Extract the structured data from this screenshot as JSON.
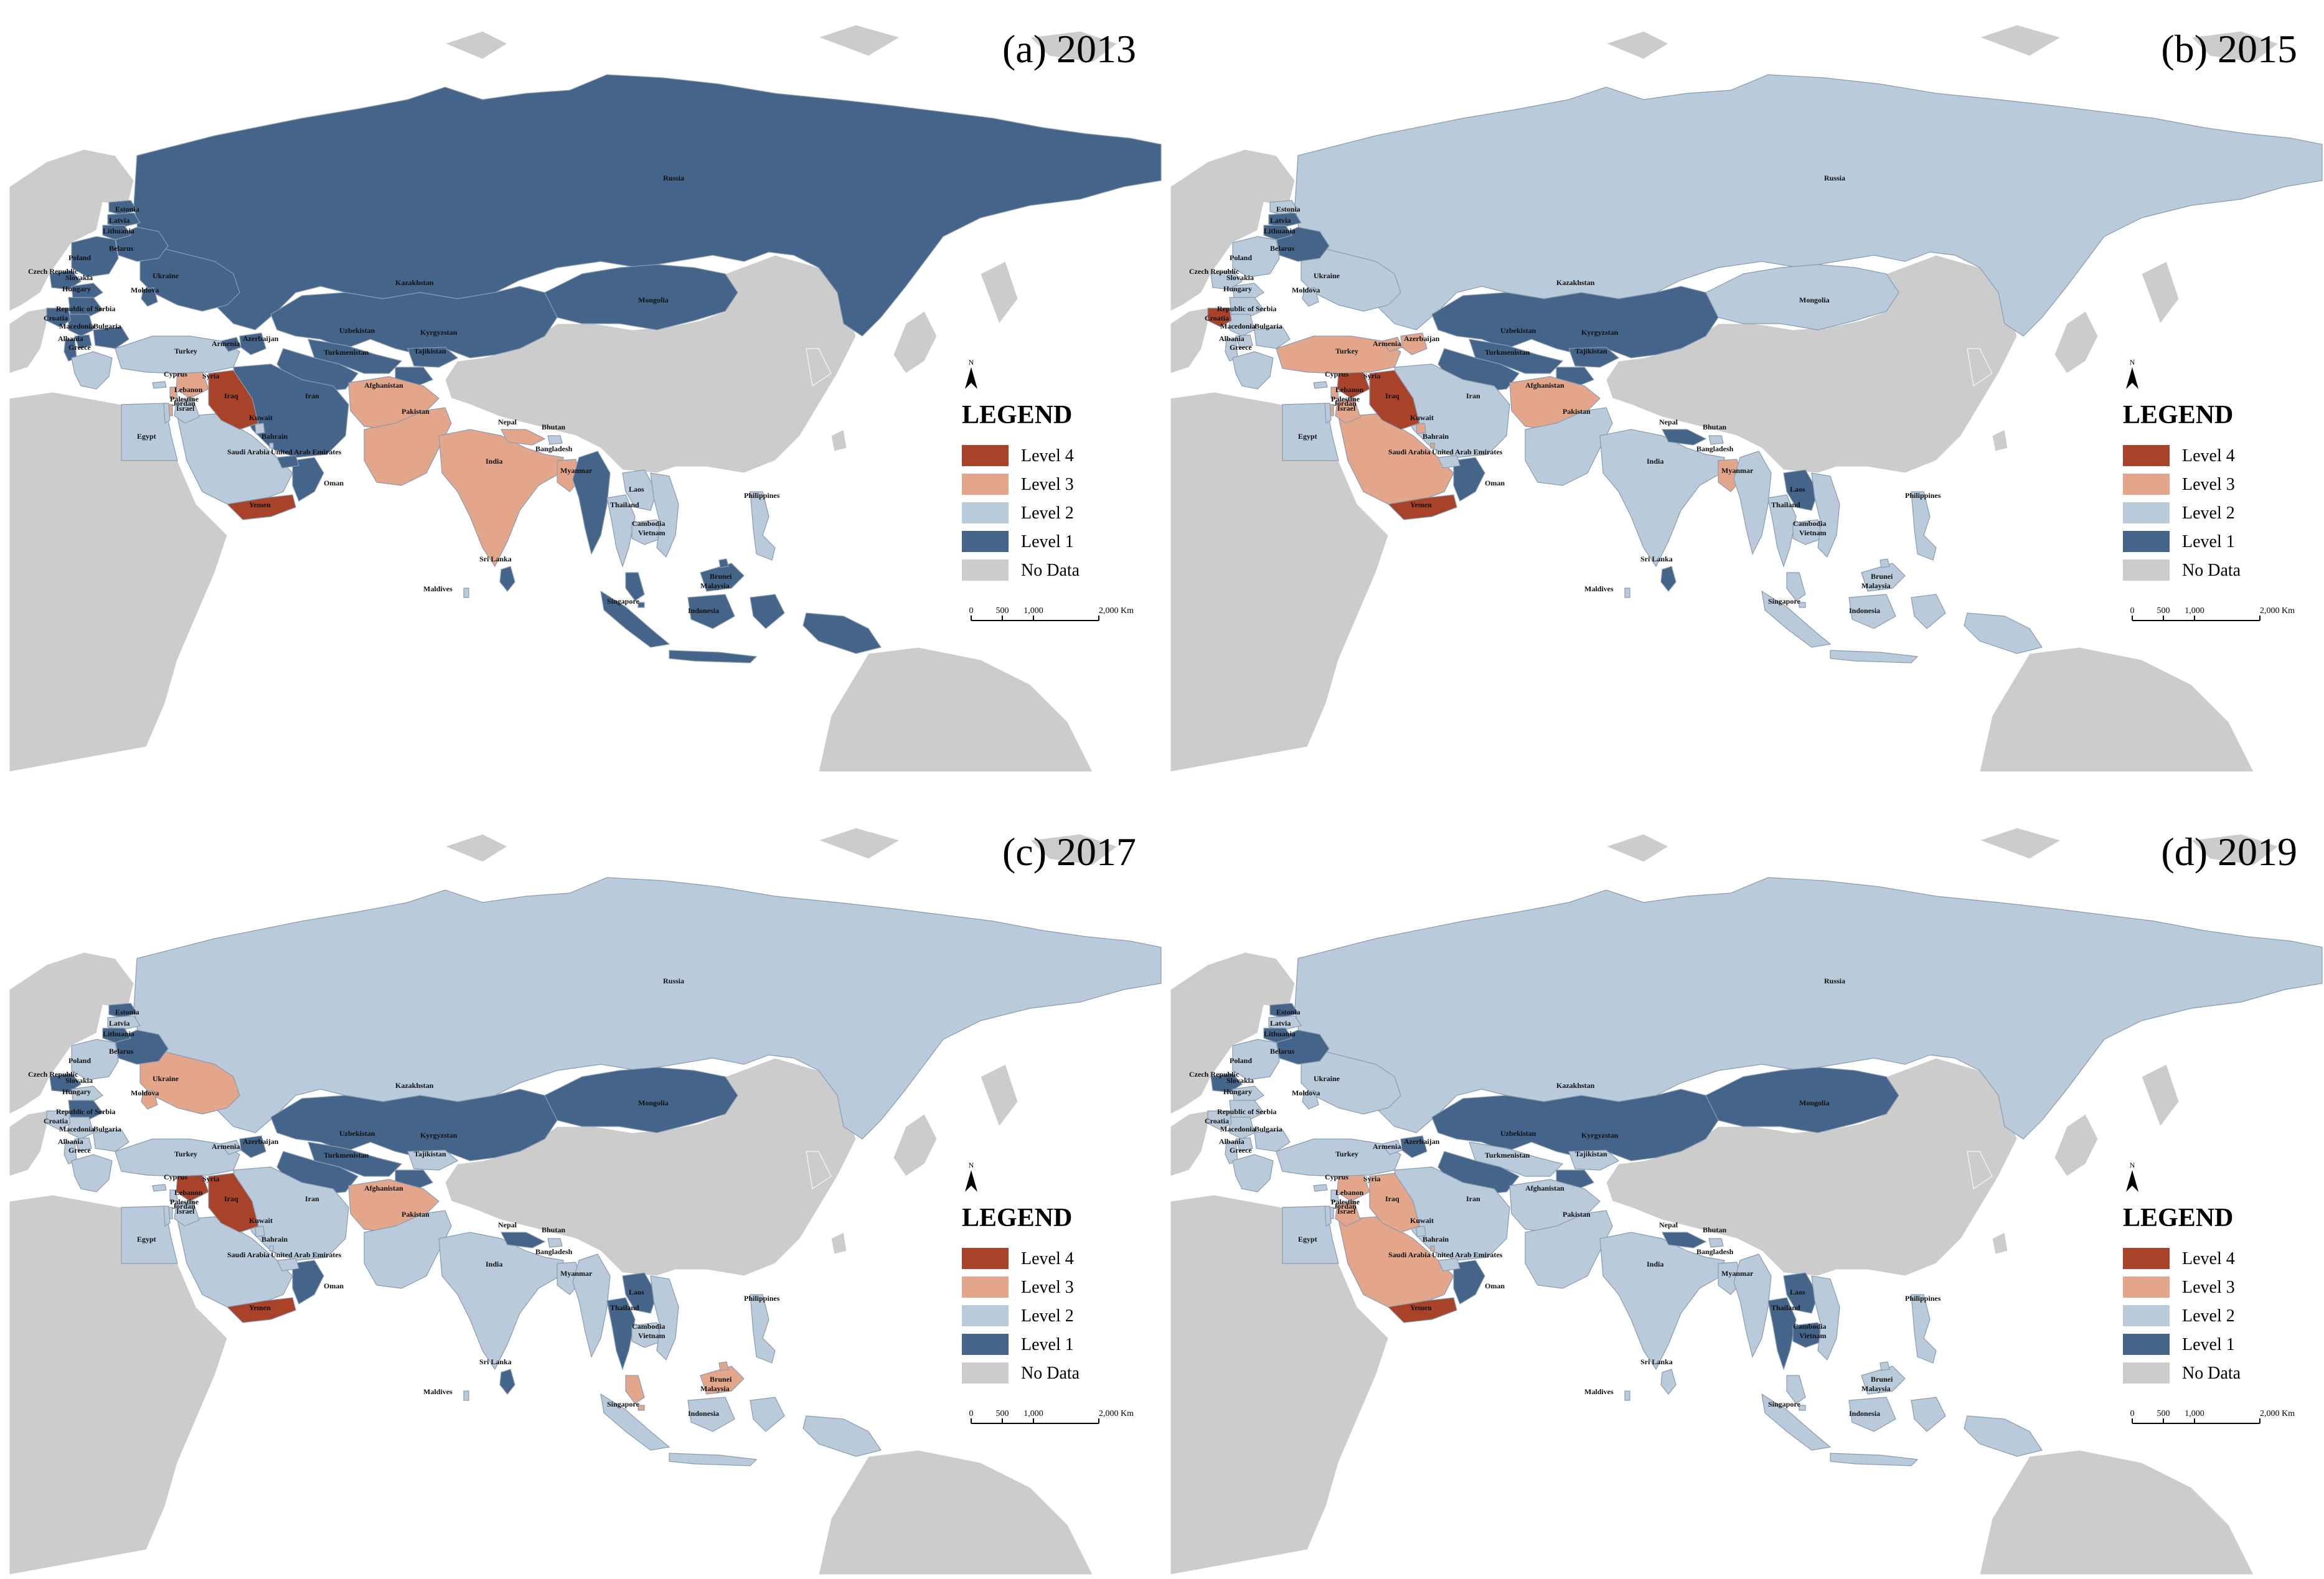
{
  "colors": {
    "level4": "#a8432a",
    "level3": "#e3a68b",
    "level2": "#b9cadb",
    "level1": "#45648a",
    "nodata": "#cccccc",
    "ocean": "#ffffff",
    "border": "#8a9bb0"
  },
  "legend": {
    "title": "LEGEND",
    "items": [
      {
        "key": "level4",
        "label": "Level 4"
      },
      {
        "key": "level3",
        "label": "Level 3"
      },
      {
        "key": "level2",
        "label": "Level 2"
      },
      {
        "key": "level1",
        "label": "Level 1"
      },
      {
        "key": "nodata",
        "label": "No Data"
      }
    ]
  },
  "scale_bar": {
    "ticks": [
      "0",
      "500",
      "1,000",
      "2,000 Km"
    ]
  },
  "north_arrow": {
    "label": "N"
  },
  "panels": [
    {
      "id": "a",
      "title": "(a) 2013",
      "levels": {
        "Russia": "level1",
        "Kazakhstan": "level1",
        "Mongolia": "level1",
        "Ukraine": "level1",
        "Belarus": "level1",
        "Poland": "level1",
        "Estonia": "level1",
        "Latvia": "level1",
        "Lithuania": "level1",
        "Czech Republic": "level1",
        "Slovakia": "level1",
        "Hungary": "level1",
        "Moldova": "level1",
        "Republic of Serbia": "level1",
        "Croatia": "level1",
        "Macedonia": "level1",
        "Bulgaria": "level1",
        "Albania": "level1",
        "Greece": "level2",
        "Turkey": "level2",
        "Armenia": "level1",
        "Azerbaijan": "level1",
        "Uzbekistan": "level1",
        "Turkmenistan": "level1",
        "Kyrgyzstan": "level1",
        "Tajikistan": "level1",
        "Iran": "level1",
        "Afghanistan": "level3",
        "Pakistan": "level3",
        "India": "level3",
        "Nepal": "level3",
        "Bhutan": "level2",
        "Bangladesh": "level3",
        "Myanmar": "level1",
        "Thailand": "level2",
        "Laos": "level2",
        "Cambodia": "level2",
        "Vietnam": "level2",
        "Sri Lanka": "level1",
        "Maldives": "level2",
        "Malaysia": "level1",
        "Singapore": "level1",
        "Indonesia": "level1",
        "Brunei": "level1",
        "Philippines": "level2",
        "Egypt": "level2",
        "Saudi Arabia": "level2",
        "Yemen": "level4",
        "Oman": "level1",
        "United Arab Emirates": "level1",
        "Iraq": "level4",
        "Syria": "level3",
        "Lebanon": "level3",
        "Palestine": "level3",
        "Israel": "level2",
        "Kuwait": "level2",
        "Bahrain": "level2",
        "Cyprus": "level2",
        "Jordan": "level2"
      }
    },
    {
      "id": "b",
      "title": "(b) 2015",
      "levels": {
        "Russia": "level2",
        "Kazakhstan": "level1",
        "Mongolia": "level2",
        "Ukraine": "level2",
        "Belarus": "level1",
        "Poland": "level2",
        "Estonia": "level2",
        "Latvia": "level1",
        "Lithuania": "level1",
        "Czech Republic": "level2",
        "Slovakia": "level2",
        "Hungary": "level2",
        "Moldova": "level2",
        "Republic of Serbia": "level2",
        "Croatia": "level4",
        "Macedonia": "level2",
        "Bulgaria": "level2",
        "Albania": "level2",
        "Greece": "level2",
        "Turkey": "level3",
        "Armenia": "level3",
        "Azerbaijan": "level3",
        "Uzbekistan": "level1",
        "Turkmenistan": "level1",
        "Kyrgyzstan": "level1",
        "Tajikistan": "level1",
        "Iran": "level2",
        "Afghanistan": "level3",
        "Pakistan": "level2",
        "India": "level2",
        "Nepal": "level1",
        "Bhutan": "level2",
        "Bangladesh": "level3",
        "Myanmar": "level2",
        "Thailand": "level2",
        "Laos": "level1",
        "Cambodia": "level2",
        "Vietnam": "level2",
        "Sri Lanka": "level1",
        "Maldives": "level2",
        "Malaysia": "level2",
        "Singapore": "level2",
        "Indonesia": "level2",
        "Brunei": "level2",
        "Philippines": "level2",
        "Egypt": "level2",
        "Saudi Arabia": "level3",
        "Yemen": "level4",
        "Oman": "level1",
        "United Arab Emirates": "level2",
        "Iraq": "level4",
        "Syria": "level4",
        "Lebanon": "level3",
        "Palestine": "level3",
        "Israel": "level2",
        "Kuwait": "level3",
        "Bahrain": "level3",
        "Cyprus": "level2",
        "Jordan": "level3"
      }
    },
    {
      "id": "c",
      "title": "(c) 2017",
      "levels": {
        "Russia": "level2",
        "Kazakhstan": "level1",
        "Mongolia": "level1",
        "Ukraine": "level3",
        "Belarus": "level1",
        "Poland": "level2",
        "Estonia": "level1",
        "Latvia": "level2",
        "Lithuania": "level1",
        "Czech Republic": "level1",
        "Slovakia": "level2",
        "Hungary": "level1",
        "Moldova": "level3",
        "Republic of Serbia": "level2",
        "Croatia": "level2",
        "Macedonia": "level2",
        "Bulgaria": "level2",
        "Albania": "level2",
        "Greece": "level2",
        "Turkey": "level2",
        "Armenia": "level2",
        "Azerbaijan": "level1",
        "Uzbekistan": "level1",
        "Turkmenistan": "level1",
        "Kyrgyzstan": "level2",
        "Tajikistan": "level1",
        "Iran": "level2",
        "Afghanistan": "level3",
        "Pakistan": "level2",
        "India": "level2",
        "Nepal": "level1",
        "Bhutan": "level2",
        "Bangladesh": "level2",
        "Myanmar": "level2",
        "Thailand": "level1",
        "Laos": "level1",
        "Cambodia": "level2",
        "Vietnam": "level2",
        "Sri Lanka": "level1",
        "Maldives": "level2",
        "Malaysia": "level3",
        "Singapore": "level3",
        "Indonesia": "level2",
        "Brunei": "level3",
        "Philippines": "level2",
        "Egypt": "level2",
        "Saudi Arabia": "level2",
        "Yemen": "level4",
        "Oman": "level1",
        "United Arab Emirates": "level2",
        "Iraq": "level4",
        "Syria": "level4",
        "Lebanon": "level2",
        "Palestine": "level2",
        "Israel": "level2",
        "Kuwait": "level2",
        "Bahrain": "level2",
        "Cyprus": "level2",
        "Jordan": "level2"
      }
    },
    {
      "id": "d",
      "title": "(d) 2019",
      "levels": {
        "Russia": "level2",
        "Kazakhstan": "level1",
        "Mongolia": "level1",
        "Ukraine": "level2",
        "Belarus": "level1",
        "Poland": "level2",
        "Estonia": "level1",
        "Latvia": "level2",
        "Lithuania": "level1",
        "Czech Republic": "level1",
        "Slovakia": "level2",
        "Hungary": "level2",
        "Moldova": "level2",
        "Republic of Serbia": "level2",
        "Croatia": "level2",
        "Macedonia": "level2",
        "Bulgaria": "level2",
        "Albania": "level2",
        "Greece": "level2",
        "Turkey": "level2",
        "Armenia": "level2",
        "Azerbaijan": "level1",
        "Uzbekistan": "level2",
        "Turkmenistan": "level1",
        "Kyrgyzstan": "level2",
        "Tajikistan": "level1",
        "Iran": "level2",
        "Afghanistan": "level2",
        "Pakistan": "level2",
        "India": "level2",
        "Nepal": "level1",
        "Bhutan": "level2",
        "Bangladesh": "level2",
        "Myanmar": "level2",
        "Thailand": "level1",
        "Laos": "level1",
        "Cambodia": "level1",
        "Vietnam": "level2",
        "Sri Lanka": "level2",
        "Maldives": "level2",
        "Malaysia": "level2",
        "Singapore": "level2",
        "Indonesia": "level2",
        "Brunei": "level2",
        "Philippines": "level2",
        "Egypt": "level2",
        "Saudi Arabia": "level3",
        "Yemen": "level4",
        "Oman": "level1",
        "United Arab Emirates": "level2",
        "Iraq": "level3",
        "Syria": "level3",
        "Lebanon": "level2",
        "Palestine": "level2",
        "Israel": "level2",
        "Kuwait": "level2",
        "Bahrain": "level3",
        "Cyprus": "level2",
        "Jordan": "level3"
      }
    }
  ],
  "countries": [
    "Russia",
    "Kazakhstan",
    "Mongolia",
    "Ukraine",
    "Belarus",
    "Poland",
    "Estonia",
    "Latvia",
    "Lithuania",
    "Czech Republic",
    "Slovakia",
    "Hungary",
    "Moldova",
    "Republic of Serbia",
    "Croatia",
    "Macedonia",
    "Bulgaria",
    "Albania",
    "Greece",
    "Turkey",
    "Armenia",
    "Azerbaijan",
    "Uzbekistan",
    "Turkmenistan",
    "Kyrgyzstan",
    "Tajikistan",
    "Iran",
    "Afghanistan",
    "Pakistan",
    "India",
    "Nepal",
    "Bhutan",
    "Bangladesh",
    "Myanmar",
    "Thailand",
    "Laos",
    "Cambodia",
    "Vietnam",
    "Sri Lanka",
    "Maldives",
    "Malaysia",
    "Singapore",
    "Indonesia",
    "Brunei",
    "Philippines",
    "Egypt",
    "Saudi Arabia",
    "Yemen",
    "Oman",
    "United Arab Emirates",
    "Iraq",
    "Syria",
    "Lebanon",
    "Palestine",
    "Israel",
    "Kuwait",
    "Bahrain",
    "Cyprus",
    "Jordan"
  ]
}
